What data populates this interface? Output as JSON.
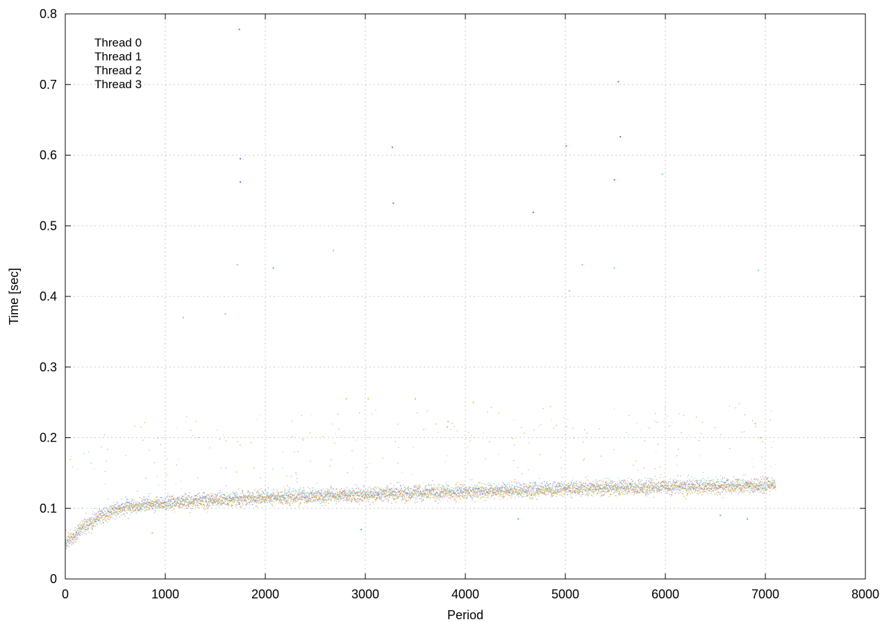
{
  "chart_data": {
    "type": "scatter",
    "title": "",
    "xlabel": "Period",
    "ylabel": "Time [sec]",
    "xlim": [
      0,
      8000
    ],
    "ylim": [
      0,
      0.8
    ],
    "x_ticks": [
      0,
      1000,
      2000,
      3000,
      4000,
      5000,
      6000,
      7000,
      8000
    ],
    "y_ticks": [
      0,
      0.1,
      0.2,
      0.3,
      0.4,
      0.5,
      0.6,
      0.7,
      0.8
    ],
    "x_tick_labels": [
      "0",
      "1000",
      "2000",
      "3000",
      "4000",
      "5000",
      "6000",
      "7000",
      "8000"
    ],
    "y_tick_labels": [
      "0",
      "0.1",
      "0.2",
      "0.3",
      "0.4",
      "0.5",
      "0.6",
      "0.7",
      "0.8"
    ],
    "grid": true,
    "legend_position": "top-left",
    "series": [
      {
        "name": "Thread 0",
        "color": "#9400d3",
        "x": [
          0,
          100,
          200,
          300,
          400,
          500,
          600,
          800,
          1000,
          1200,
          1500,
          1750,
          2000,
          2500,
          3000,
          3500,
          4000,
          4500,
          5000,
          5500,
          6000,
          6500,
          7000,
          7100
        ],
        "y": [
          0.048,
          0.062,
          0.075,
          0.085,
          0.092,
          0.098,
          0.102,
          0.106,
          0.108,
          0.11,
          0.112,
          0.114,
          0.116,
          0.118,
          0.12,
          0.122,
          0.124,
          0.126,
          0.128,
          0.13,
          0.131,
          0.132,
          0.133,
          0.134
        ],
        "outliers": [
          [
            1740,
            0.778
          ],
          [
            1750,
            0.595
          ],
          [
            1750,
            0.562
          ],
          [
            3270,
            0.611
          ],
          [
            5550,
            0.626
          ],
          [
            5530,
            0.704
          ],
          [
            5010,
            0.613
          ],
          [
            5490,
            0.565
          ],
          [
            4680,
            0.519
          ],
          [
            3280,
            0.532
          ]
        ]
      },
      {
        "name": "Thread 1",
        "color": "#009e73",
        "x": [
          0,
          100,
          200,
          300,
          400,
          500,
          600,
          800,
          1000,
          1200,
          1500,
          1750,
          2000,
          2500,
          3000,
          3500,
          4000,
          4500,
          5000,
          5500,
          6000,
          6500,
          7000,
          7100
        ],
        "y": [
          0.05,
          0.064,
          0.077,
          0.086,
          0.093,
          0.099,
          0.103,
          0.107,
          0.109,
          0.111,
          0.113,
          0.115,
          0.117,
          0.119,
          0.121,
          0.123,
          0.125,
          0.127,
          0.129,
          0.131,
          0.132,
          0.133,
          0.134,
          0.135
        ],
        "outliers": [
          [
            2960,
            0.07
          ],
          [
            4530,
            0.085
          ],
          [
            6550,
            0.09
          ],
          [
            6820,
            0.085
          ],
          [
            2080,
            0.44
          ]
        ]
      },
      {
        "name": "Thread 2",
        "color": "#56b4e9",
        "x": [
          0,
          100,
          200,
          300,
          400,
          500,
          600,
          800,
          1000,
          1200,
          1500,
          1750,
          2000,
          2500,
          3000,
          3500,
          4000,
          4500,
          5000,
          5500,
          6000,
          6500,
          7000,
          7100
        ],
        "y": [
          0.047,
          0.061,
          0.074,
          0.084,
          0.091,
          0.097,
          0.101,
          0.105,
          0.107,
          0.109,
          0.111,
          0.113,
          0.115,
          0.117,
          0.119,
          0.121,
          0.123,
          0.125,
          0.127,
          0.129,
          0.13,
          0.131,
          0.132,
          0.133
        ],
        "outliers": [
          [
            1180,
            0.37
          ],
          [
            1600,
            0.375
          ],
          [
            1720,
            0.445
          ],
          [
            2680,
            0.465
          ],
          [
            5040,
            0.408
          ],
          [
            5170,
            0.445
          ],
          [
            5490,
            0.44
          ],
          [
            5970,
            0.573
          ],
          [
            6930,
            0.437
          ]
        ]
      },
      {
        "name": "Thread 3",
        "color": "#e69f00",
        "x": [
          0,
          100,
          200,
          300,
          400,
          500,
          600,
          800,
          1000,
          1200,
          1500,
          1750,
          2000,
          2500,
          3000,
          3500,
          4000,
          4500,
          5000,
          5500,
          6000,
          6500,
          7000,
          7100
        ],
        "y": [
          0.049,
          0.063,
          0.076,
          0.083,
          0.09,
          0.096,
          0.1,
          0.104,
          0.106,
          0.108,
          0.11,
          0.112,
          0.114,
          0.116,
          0.118,
          0.12,
          0.122,
          0.124,
          0.126,
          0.128,
          0.129,
          0.13,
          0.131,
          0.132
        ],
        "outliers": [
          [
            2810,
            0.255
          ],
          [
            3030,
            0.255
          ],
          [
            3500,
            0.255
          ],
          [
            4080,
            0.25
          ],
          [
            6900,
            0.22
          ],
          [
            6950,
            0.2
          ],
          [
            3820,
            0.215
          ],
          [
            870,
            0.065
          ]
        ]
      }
    ]
  }
}
